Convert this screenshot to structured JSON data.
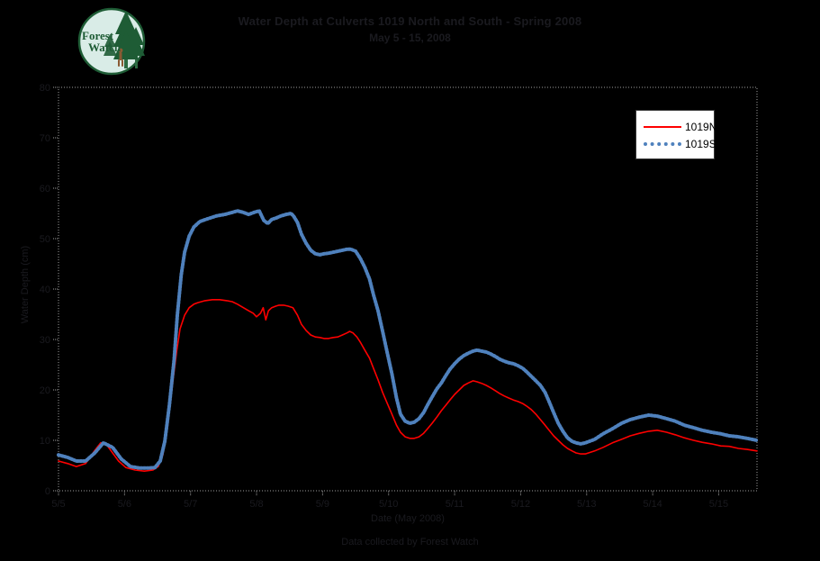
{
  "page": {
    "background": "#000000"
  },
  "logo": {
    "text_line1": "Forest",
    "text_line2": "Watch",
    "circle_fill": "#d9ece7",
    "tree_color": "#1e5c35"
  },
  "header": {
    "title_line1": "Water Depth at Culverts 1019 North and South - Spring 2008",
    "title_line2": "May 5 - 15, 2008"
  },
  "legend": {
    "items": [
      {
        "label": "1019N",
        "color": "#fe0000",
        "style": "solid-thin"
      },
      {
        "label": "1019S",
        "color": "#4f81bd",
        "style": "dotted-thick"
      }
    ]
  },
  "footer": {
    "caption": "Data collected by Forest Watch"
  },
  "chart_data": {
    "type": "line",
    "title": "Water Depth at Culverts 1019 North and South - Spring 2008",
    "subtitle": "May 5 - 15, 2008",
    "xlabel": "Date (May 2008)",
    "ylabel": "Water Depth (cm)",
    "grid": false,
    "legend_position": "top-right",
    "plot_bg": "#000000",
    "frame_color": "#9e9e9e",
    "tick_text_color": "#1a1a1f",
    "ylim": [
      0,
      80
    ],
    "xlim": [
      0,
      10.58
    ],
    "y_ticks": [
      0,
      10,
      20,
      30,
      40,
      50,
      60,
      70,
      80
    ],
    "x_tick_positions": [
      0,
      1,
      2,
      3,
      4,
      5,
      6,
      7,
      8,
      9,
      10
    ],
    "x_tick_labels": [
      "5/5",
      "5/6",
      "5/7",
      "5/8",
      "5/9",
      "5/10",
      "5/11",
      "5/12",
      "5/13",
      "5/14",
      "5/15"
    ],
    "series": [
      {
        "name": "1019N",
        "color": "#fe0000",
        "width": 1.6,
        "style": "solid",
        "points": [
          [
            0,
            5.9
          ],
          [
            0.14,
            5.4
          ],
          [
            0.27,
            4.8
          ],
          [
            0.41,
            5.4
          ],
          [
            0.55,
            8
          ],
          [
            0.64,
            9.5
          ],
          [
            0.72,
            9.3
          ],
          [
            0.82,
            7.5
          ],
          [
            0.91,
            5.9
          ],
          [
            1.02,
            4.6
          ],
          [
            1.16,
            4.1
          ],
          [
            1.3,
            3.9
          ],
          [
            1.43,
            4.1
          ],
          [
            1.51,
            4.8
          ],
          [
            1.58,
            7.1
          ],
          [
            1.65,
            12.5
          ],
          [
            1.72,
            20.5
          ],
          [
            1.79,
            27.7
          ],
          [
            1.84,
            32.1
          ],
          [
            1.91,
            34.8
          ],
          [
            1.98,
            36.3
          ],
          [
            2.05,
            37
          ],
          [
            2.11,
            37.3
          ],
          [
            2.22,
            37.7
          ],
          [
            2.33,
            37.9
          ],
          [
            2.44,
            37.9
          ],
          [
            2.55,
            37.7
          ],
          [
            2.63,
            37.5
          ],
          [
            2.71,
            37
          ],
          [
            2.8,
            36.3
          ],
          [
            2.88,
            35.7
          ],
          [
            2.95,
            35.2
          ],
          [
            3,
            34.5
          ],
          [
            3.06,
            35.2
          ],
          [
            3.1,
            36.3
          ],
          [
            3.14,
            33.9
          ],
          [
            3.18,
            35.7
          ],
          [
            3.23,
            36.3
          ],
          [
            3.29,
            36.6
          ],
          [
            3.34,
            36.8
          ],
          [
            3.41,
            36.8
          ],
          [
            3.48,
            36.6
          ],
          [
            3.55,
            36.3
          ],
          [
            3.62,
            34.8
          ],
          [
            3.68,
            33
          ],
          [
            3.75,
            31.8
          ],
          [
            3.82,
            30.9
          ],
          [
            3.89,
            30.5
          ],
          [
            3.96,
            30.4
          ],
          [
            4.02,
            30.2
          ],
          [
            4.09,
            30.2
          ],
          [
            4.16,
            30.4
          ],
          [
            4.23,
            30.5
          ],
          [
            4.3,
            30.9
          ],
          [
            4.37,
            31.3
          ],
          [
            4.41,
            31.6
          ],
          [
            4.46,
            31.3
          ],
          [
            4.52,
            30.5
          ],
          [
            4.57,
            29.5
          ],
          [
            4.64,
            27.9
          ],
          [
            4.71,
            26.3
          ],
          [
            4.77,
            24.3
          ],
          [
            4.84,
            22
          ],
          [
            4.91,
            19.5
          ],
          [
            4.98,
            17.3
          ],
          [
            5.05,
            15.2
          ],
          [
            5.12,
            13
          ],
          [
            5.18,
            11.6
          ],
          [
            5.25,
            10.7
          ],
          [
            5.32,
            10.4
          ],
          [
            5.39,
            10.4
          ],
          [
            5.46,
            10.7
          ],
          [
            5.53,
            11.4
          ],
          [
            5.59,
            12.3
          ],
          [
            5.66,
            13.4
          ],
          [
            5.73,
            14.6
          ],
          [
            5.8,
            15.9
          ],
          [
            5.87,
            17
          ],
          [
            5.93,
            18
          ],
          [
            6,
            19.1
          ],
          [
            6.07,
            20
          ],
          [
            6.14,
            20.9
          ],
          [
            6.21,
            21.4
          ],
          [
            6.28,
            21.8
          ],
          [
            6.34,
            21.6
          ],
          [
            6.41,
            21.3
          ],
          [
            6.48,
            20.9
          ],
          [
            6.55,
            20.4
          ],
          [
            6.62,
            19.8
          ],
          [
            6.68,
            19.3
          ],
          [
            6.75,
            18.8
          ],
          [
            6.82,
            18.4
          ],
          [
            6.89,
            18
          ],
          [
            6.96,
            17.7
          ],
          [
            7.03,
            17.3
          ],
          [
            7.09,
            16.8
          ],
          [
            7.16,
            16.1
          ],
          [
            7.23,
            15.2
          ],
          [
            7.3,
            14.1
          ],
          [
            7.37,
            13
          ],
          [
            7.43,
            12
          ],
          [
            7.5,
            10.9
          ],
          [
            7.57,
            10
          ],
          [
            7.64,
            9.1
          ],
          [
            7.71,
            8.4
          ],
          [
            7.78,
            7.9
          ],
          [
            7.84,
            7.5
          ],
          [
            7.91,
            7.3
          ],
          [
            7.98,
            7.3
          ],
          [
            8.12,
            7.9
          ],
          [
            8.25,
            8.6
          ],
          [
            8.39,
            9.5
          ],
          [
            8.53,
            10.2
          ],
          [
            8.66,
            10.9
          ],
          [
            8.8,
            11.4
          ],
          [
            8.94,
            11.8
          ],
          [
            9.07,
            12
          ],
          [
            9.21,
            11.6
          ],
          [
            9.34,
            11.1
          ],
          [
            9.48,
            10.5
          ],
          [
            9.62,
            10
          ],
          [
            9.75,
            9.6
          ],
          [
            9.89,
            9.3
          ],
          [
            10.03,
            8.9
          ],
          [
            10.16,
            8.8
          ],
          [
            10.3,
            8.4
          ],
          [
            10.43,
            8.2
          ],
          [
            10.58,
            7.9
          ]
        ]
      },
      {
        "name": "1019S",
        "color": "#4f81bd",
        "width": 4,
        "style": "dotted",
        "points": [
          [
            0,
            7.1
          ],
          [
            0.14,
            6.6
          ],
          [
            0.27,
            5.9
          ],
          [
            0.41,
            5.9
          ],
          [
            0.55,
            7.5
          ],
          [
            0.68,
            9.5
          ],
          [
            0.82,
            8.6
          ],
          [
            0.95,
            6.3
          ],
          [
            1.09,
            4.8
          ],
          [
            1.23,
            4.5
          ],
          [
            1.36,
            4.5
          ],
          [
            1.46,
            4.6
          ],
          [
            1.54,
            5.9
          ],
          [
            1.61,
            9.8
          ],
          [
            1.68,
            17
          ],
          [
            1.75,
            25.9
          ],
          [
            1.8,
            34.8
          ],
          [
            1.86,
            42.9
          ],
          [
            1.91,
            47.3
          ],
          [
            1.98,
            50.5
          ],
          [
            2.05,
            52.3
          ],
          [
            2.14,
            53.4
          ],
          [
            2.25,
            53.9
          ],
          [
            2.39,
            54.5
          ],
          [
            2.52,
            54.8
          ],
          [
            2.63,
            55.2
          ],
          [
            2.71,
            55.5
          ],
          [
            2.8,
            55.2
          ],
          [
            2.88,
            54.8
          ],
          [
            2.96,
            55.2
          ],
          [
            3.04,
            55.5
          ],
          [
            3.11,
            53.6
          ],
          [
            3.17,
            53
          ],
          [
            3.23,
            53.8
          ],
          [
            3.3,
            54.1
          ],
          [
            3.37,
            54.5
          ],
          [
            3.45,
            54.8
          ],
          [
            3.52,
            55
          ],
          [
            3.56,
            54.5
          ],
          [
            3.62,
            53.2
          ],
          [
            3.68,
            50.9
          ],
          [
            3.75,
            49.1
          ],
          [
            3.82,
            47.7
          ],
          [
            3.89,
            47
          ],
          [
            3.96,
            46.8
          ],
          [
            4.02,
            47
          ],
          [
            4.09,
            47.1
          ],
          [
            4.16,
            47.3
          ],
          [
            4.23,
            47.5
          ],
          [
            4.3,
            47.7
          ],
          [
            4.37,
            47.9
          ],
          [
            4.43,
            47.9
          ],
          [
            4.5,
            47.5
          ],
          [
            4.57,
            46.1
          ],
          [
            4.64,
            44.3
          ],
          [
            4.71,
            42
          ],
          [
            4.77,
            38.9
          ],
          [
            4.84,
            35.7
          ],
          [
            4.91,
            31.6
          ],
          [
            4.98,
            27.3
          ],
          [
            5.05,
            23.2
          ],
          [
            5.12,
            18.4
          ],
          [
            5.18,
            15.2
          ],
          [
            5.25,
            13.8
          ],
          [
            5.32,
            13.4
          ],
          [
            5.39,
            13.6
          ],
          [
            5.46,
            14.3
          ],
          [
            5.53,
            15.5
          ],
          [
            5.59,
            17
          ],
          [
            5.66,
            18.6
          ],
          [
            5.73,
            20.2
          ],
          [
            5.8,
            21.4
          ],
          [
            5.87,
            22.9
          ],
          [
            5.93,
            24.1
          ],
          [
            6,
            25.2
          ],
          [
            6.07,
            26.1
          ],
          [
            6.14,
            26.8
          ],
          [
            6.21,
            27.3
          ],
          [
            6.28,
            27.7
          ],
          [
            6.34,
            27.9
          ],
          [
            6.41,
            27.7
          ],
          [
            6.48,
            27.5
          ],
          [
            6.55,
            27.1
          ],
          [
            6.62,
            26.6
          ],
          [
            6.68,
            26.1
          ],
          [
            6.75,
            25.7
          ],
          [
            6.82,
            25.4
          ],
          [
            6.89,
            25.2
          ],
          [
            6.96,
            24.8
          ],
          [
            7.03,
            24.3
          ],
          [
            7.09,
            23.6
          ],
          [
            7.16,
            22.7
          ],
          [
            7.23,
            21.8
          ],
          [
            7.3,
            20.9
          ],
          [
            7.37,
            19.5
          ],
          [
            7.43,
            17.7
          ],
          [
            7.5,
            15.5
          ],
          [
            7.57,
            13.4
          ],
          [
            7.64,
            11.8
          ],
          [
            7.71,
            10.5
          ],
          [
            7.78,
            9.8
          ],
          [
            7.84,
            9.5
          ],
          [
            7.91,
            9.3
          ],
          [
            7.98,
            9.5
          ],
          [
            8.12,
            10.2
          ],
          [
            8.25,
            11.3
          ],
          [
            8.39,
            12.3
          ],
          [
            8.53,
            13.4
          ],
          [
            8.66,
            14.1
          ],
          [
            8.8,
            14.6
          ],
          [
            8.94,
            15
          ],
          [
            9.07,
            14.8
          ],
          [
            9.21,
            14.3
          ],
          [
            9.34,
            13.8
          ],
          [
            9.48,
            13
          ],
          [
            9.62,
            12.5
          ],
          [
            9.75,
            12
          ],
          [
            9.89,
            11.6
          ],
          [
            10.03,
            11.3
          ],
          [
            10.16,
            10.9
          ],
          [
            10.3,
            10.7
          ],
          [
            10.43,
            10.4
          ],
          [
            10.58,
            10
          ]
        ]
      }
    ]
  }
}
